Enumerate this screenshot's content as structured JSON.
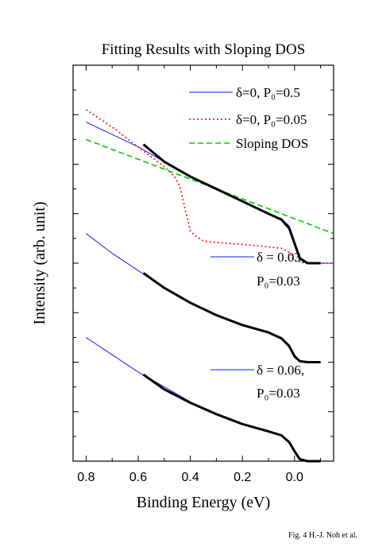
{
  "chart_data": {
    "type": "line",
    "title": "Fitting Results with Sloping DOS",
    "xlabel": "Binding Energy (eV)",
    "ylabel": "Intensity (arb. unit)",
    "x_reversed": true,
    "xlim": [
      0.85,
      -0.15
    ],
    "ylim": [
      0,
      8
    ],
    "x_ticks": [
      "0.8",
      "0.6",
      "0.4",
      "0.2",
      "0.0"
    ],
    "x_tick_values": [
      0.8,
      0.6,
      0.4,
      0.2,
      0.0
    ],
    "y_tick_labels_shown": false,
    "groups": [
      {
        "legend": [
          {
            "label": "δ=0, P₀=0.5",
            "color": "#1a1aff",
            "style": "solid"
          },
          {
            "label": "δ=0, P₀=0.05",
            "color": "#ff2020",
            "style": "dotted"
          },
          {
            "label": "Sloping DOS",
            "color": "#00cc00",
            "style": "dashed"
          }
        ],
        "series": [
          {
            "name": "δ=0, P₀=0.5",
            "color": "#1a1aff",
            "style": "solid",
            "x": [
              0.8,
              0.7,
              0.6,
              0.5,
              0.4,
              0.3,
              0.2,
              0.1,
              0.05,
              0.02,
              0.0,
              -0.02,
              -0.05,
              -0.1,
              -0.15
            ],
            "y": [
              6.85,
              6.6,
              6.35,
              6.05,
              5.75,
              5.5,
              5.25,
              5.0,
              4.9,
              4.75,
              4.45,
              4.1,
              4.0,
              4.0,
              4.0
            ]
          },
          {
            "name": "δ=0, P₀=0.05",
            "color": "#ff2020",
            "style": "dotted",
            "x": [
              0.8,
              0.7,
              0.6,
              0.55,
              0.5,
              0.46,
              0.44,
              0.42,
              0.4,
              0.38,
              0.35,
              0.3,
              0.2,
              0.1,
              0.05,
              0.02,
              0.0,
              -0.05,
              -0.1,
              -0.15
            ],
            "y": [
              7.1,
              6.75,
              6.35,
              6.15,
              5.95,
              5.75,
              5.55,
              5.1,
              4.65,
              4.55,
              4.45,
              4.42,
              4.38,
              4.33,
              4.3,
              4.22,
              4.05,
              4.0,
              4.0,
              4.0
            ]
          },
          {
            "name": "Sloping DOS",
            "color": "#00cc00",
            "style": "dashed",
            "x": [
              0.8,
              0.6,
              0.4,
              0.2,
              0.0,
              -0.15
            ],
            "y": [
              6.5,
              6.1,
              5.7,
              5.3,
              4.9,
              4.6
            ]
          },
          {
            "name": "data",
            "color": "#000000",
            "style": "data",
            "x": [
              0.58,
              0.5,
              0.4,
              0.3,
              0.2,
              0.1,
              0.05,
              0.02,
              0.0,
              -0.02,
              -0.05,
              -0.1
            ],
            "y": [
              6.4,
              6.05,
              5.75,
              5.5,
              5.25,
              5.0,
              4.88,
              4.7,
              4.4,
              4.1,
              4.0,
              4.0
            ]
          }
        ]
      },
      {
        "legend": [
          {
            "label": "δ = 0.03,",
            "label2": "P₀=0.03",
            "color": "#1a1aff",
            "style": "solid"
          }
        ],
        "series": [
          {
            "name": "δ = 0.03, P₀=0.03",
            "color": "#1a1aff",
            "style": "solid",
            "x": [
              0.8,
              0.7,
              0.6,
              0.5,
              0.4,
              0.3,
              0.2,
              0.1,
              0.05,
              0.02,
              0.0,
              -0.02,
              -0.05,
              -0.1
            ],
            "y": [
              4.6,
              4.2,
              3.85,
              3.5,
              3.2,
              2.95,
              2.75,
              2.6,
              2.5,
              2.35,
              2.15,
              2.02,
              2.0,
              2.0
            ]
          },
          {
            "name": "data",
            "color": "#000000",
            "style": "data",
            "x": [
              0.58,
              0.5,
              0.4,
              0.3,
              0.2,
              0.1,
              0.05,
              0.02,
              0.0,
              -0.02,
              -0.05,
              -0.1
            ],
            "y": [
              3.8,
              3.5,
              3.2,
              2.95,
              2.75,
              2.6,
              2.48,
              2.32,
              2.12,
              2.02,
              2.0,
              2.0
            ]
          }
        ]
      },
      {
        "legend": [
          {
            "label": "δ = 0.06,",
            "label2": "P₀=0.03",
            "color": "#1a1aff",
            "style": "solid"
          }
        ],
        "series": [
          {
            "name": "δ = 0.06, P₀=0.03",
            "color": "#1a1aff",
            "style": "solid",
            "x": [
              0.8,
              0.7,
              0.6,
              0.5,
              0.4,
              0.3,
              0.2,
              0.1,
              0.05,
              0.02,
              0.0,
              -0.02,
              -0.05,
              -0.1
            ],
            "y": [
              2.5,
              2.15,
              1.8,
              1.5,
              1.2,
              0.95,
              0.75,
              0.6,
              0.52,
              0.4,
              0.22,
              0.04,
              0.0,
              0.0
            ]
          },
          {
            "name": "data",
            "color": "#000000",
            "style": "data",
            "x": [
              0.58,
              0.5,
              0.4,
              0.3,
              0.2,
              0.1,
              0.05,
              0.02,
              0.0,
              -0.02,
              -0.05,
              -0.1
            ],
            "y": [
              1.75,
              1.45,
              1.18,
              0.95,
              0.75,
              0.6,
              0.52,
              0.38,
              0.2,
              0.04,
              0.0,
              0.0
            ]
          }
        ]
      }
    ]
  },
  "credit": "Fig. 4 H.-J. Noh et al."
}
